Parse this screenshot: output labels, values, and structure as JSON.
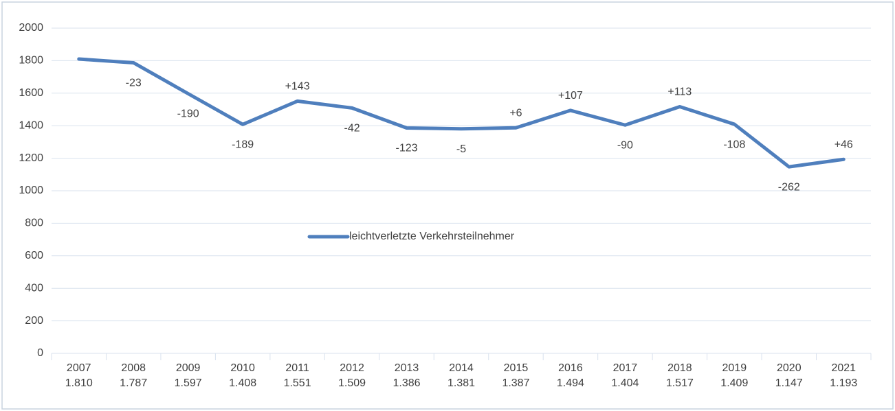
{
  "chart_data": {
    "type": "line",
    "categories": [
      "2007",
      "2008",
      "2009",
      "2010",
      "2011",
      "2012",
      "2013",
      "2014",
      "2015",
      "2016",
      "2017",
      "2018",
      "2019",
      "2020",
      "2021"
    ],
    "series": [
      {
        "name": "leichtverletzte Verkehrsteilnehmer",
        "color": "#4f7fbd",
        "values": [
          1810,
          1787,
          1597,
          1408,
          1551,
          1509,
          1386,
          1381,
          1387,
          1494,
          1404,
          1517,
          1409,
          1147,
          1193
        ],
        "value_labels": [
          "1.810",
          "1.787",
          "1.597",
          "1.408",
          "1.551",
          "1.509",
          "1.386",
          "1.381",
          "1.387",
          "1.494",
          "1.404",
          "1.517",
          "1.409",
          "1.147",
          "1.193"
        ],
        "change_labels": [
          null,
          "-23",
          "-190",
          "-189",
          "+143",
          "-42",
          "-123",
          "-5",
          "+6",
          "+107",
          "-90",
          "+113",
          "-108",
          "-262",
          "+46"
        ]
      }
    ],
    "ylim": [
      0,
      2000
    ],
    "yticks": [
      0,
      200,
      400,
      600,
      800,
      1000,
      1200,
      1400,
      1600,
      1800,
      2000
    ],
    "grid": true,
    "legend": "center"
  }
}
